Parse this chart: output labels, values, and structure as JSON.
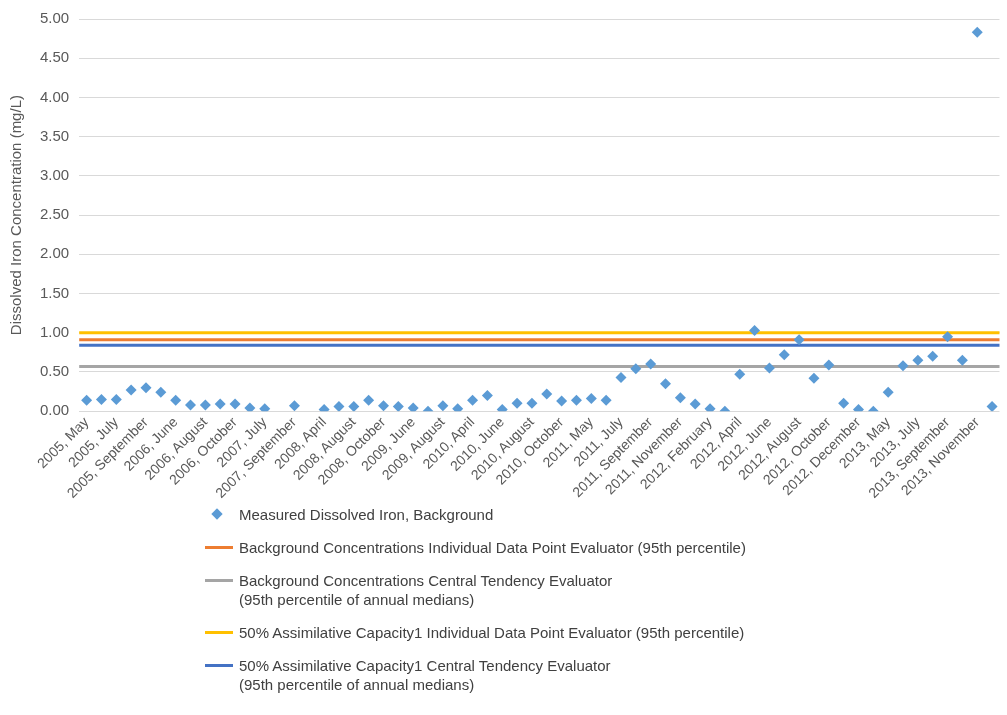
{
  "chart_data": {
    "type": "scatter",
    "ylabel": "Dissolved Iron Concentration (mg/L)",
    "categories": [
      "2005, May",
      null,
      "2005, July",
      null,
      "2005, September",
      null,
      "2006, June",
      null,
      "2006, August",
      null,
      "2006, October",
      null,
      "2007, July",
      null,
      "2007, September",
      null,
      "2008, April",
      null,
      "2008, August",
      null,
      "2008, October",
      null,
      "2009, June",
      null,
      "2009, August",
      null,
      "2010, April",
      null,
      "2010, June",
      null,
      "2010, August",
      null,
      "2010, October",
      null,
      "2011, May",
      null,
      "2011, July",
      null,
      "2011, September",
      null,
      "2011, November",
      null,
      "2012, February",
      null,
      "2012, April",
      null,
      "2012, June",
      null,
      "2012, August",
      null,
      "2012, October",
      null,
      "2012, December",
      null,
      "2013, May",
      null,
      "2013, July",
      null,
      "2013, September",
      null,
      "2013, November",
      null
    ],
    "series": [
      {
        "name": "Measured Dissolved Iron, Background",
        "color": "#5b9bd5",
        "values": [
          0.14,
          0.15,
          0.15,
          0.27,
          0.3,
          0.24,
          0.14,
          0.08,
          0.08,
          0.09,
          0.09,
          0.04,
          0.03,
          null,
          0.07,
          null,
          0.02,
          0.06,
          0.06,
          0.14,
          0.07,
          0.06,
          0.04,
          0.0,
          0.07,
          0.03,
          0.14,
          0.2,
          0.02,
          0.1,
          0.1,
          0.22,
          0.13,
          0.14,
          0.16,
          0.14,
          0.43,
          0.54,
          0.6,
          0.35,
          0.17,
          0.09,
          0.03,
          0.0,
          0.47,
          1.03,
          0.55,
          0.72,
          0.91,
          0.42,
          0.59,
          0.1,
          0.02,
          0.0,
          0.24,
          0.58,
          0.65,
          0.7,
          0.95,
          0.65,
          4.83,
          0.06
        ]
      }
    ],
    "ref_lines": [
      {
        "axis": "y",
        "value": 0.91,
        "label": "Background Concentrations Individual Data Point Evaluator (95th percentile)",
        "color": "#ed7d31"
      },
      {
        "axis": "y",
        "value": 0.57,
        "label": "Background Concentrations Central Tendency Evaluator\n(95th percentile of annual medians)",
        "color": "#a5a5a5"
      },
      {
        "axis": "y",
        "value": 1.0,
        "label": "50% Assimilative Capacity1 Individual Data Point Evaluator (95th percentile)",
        "color": "#ffc000"
      },
      {
        "axis": "y",
        "value": 0.84,
        "label": "50% Assimilative Capacity1 Central Tendency Evaluator\n(95th percentile of annual medians)",
        "color": "#4472c4"
      }
    ],
    "ylim": [
      0,
      5
    ],
    "yticks": [
      {
        "value": 0,
        "label": "0.00"
      },
      {
        "value": 0.5,
        "label": "0.50"
      },
      {
        "value": 1,
        "label": "1.00"
      },
      {
        "value": 1.5,
        "label": "1.50"
      },
      {
        "value": 2,
        "label": "2.00"
      },
      {
        "value": 2.5,
        "label": "2.50"
      },
      {
        "value": 3,
        "label": "3.00"
      },
      {
        "value": 3.5,
        "label": "3.50"
      },
      {
        "value": 4,
        "label": "4.00"
      },
      {
        "value": 4.5,
        "label": "4.50"
      },
      {
        "value": 5,
        "label": "5.00"
      }
    ],
    "grid": "y",
    "legend": "bottom",
    "marker": "diamond"
  }
}
